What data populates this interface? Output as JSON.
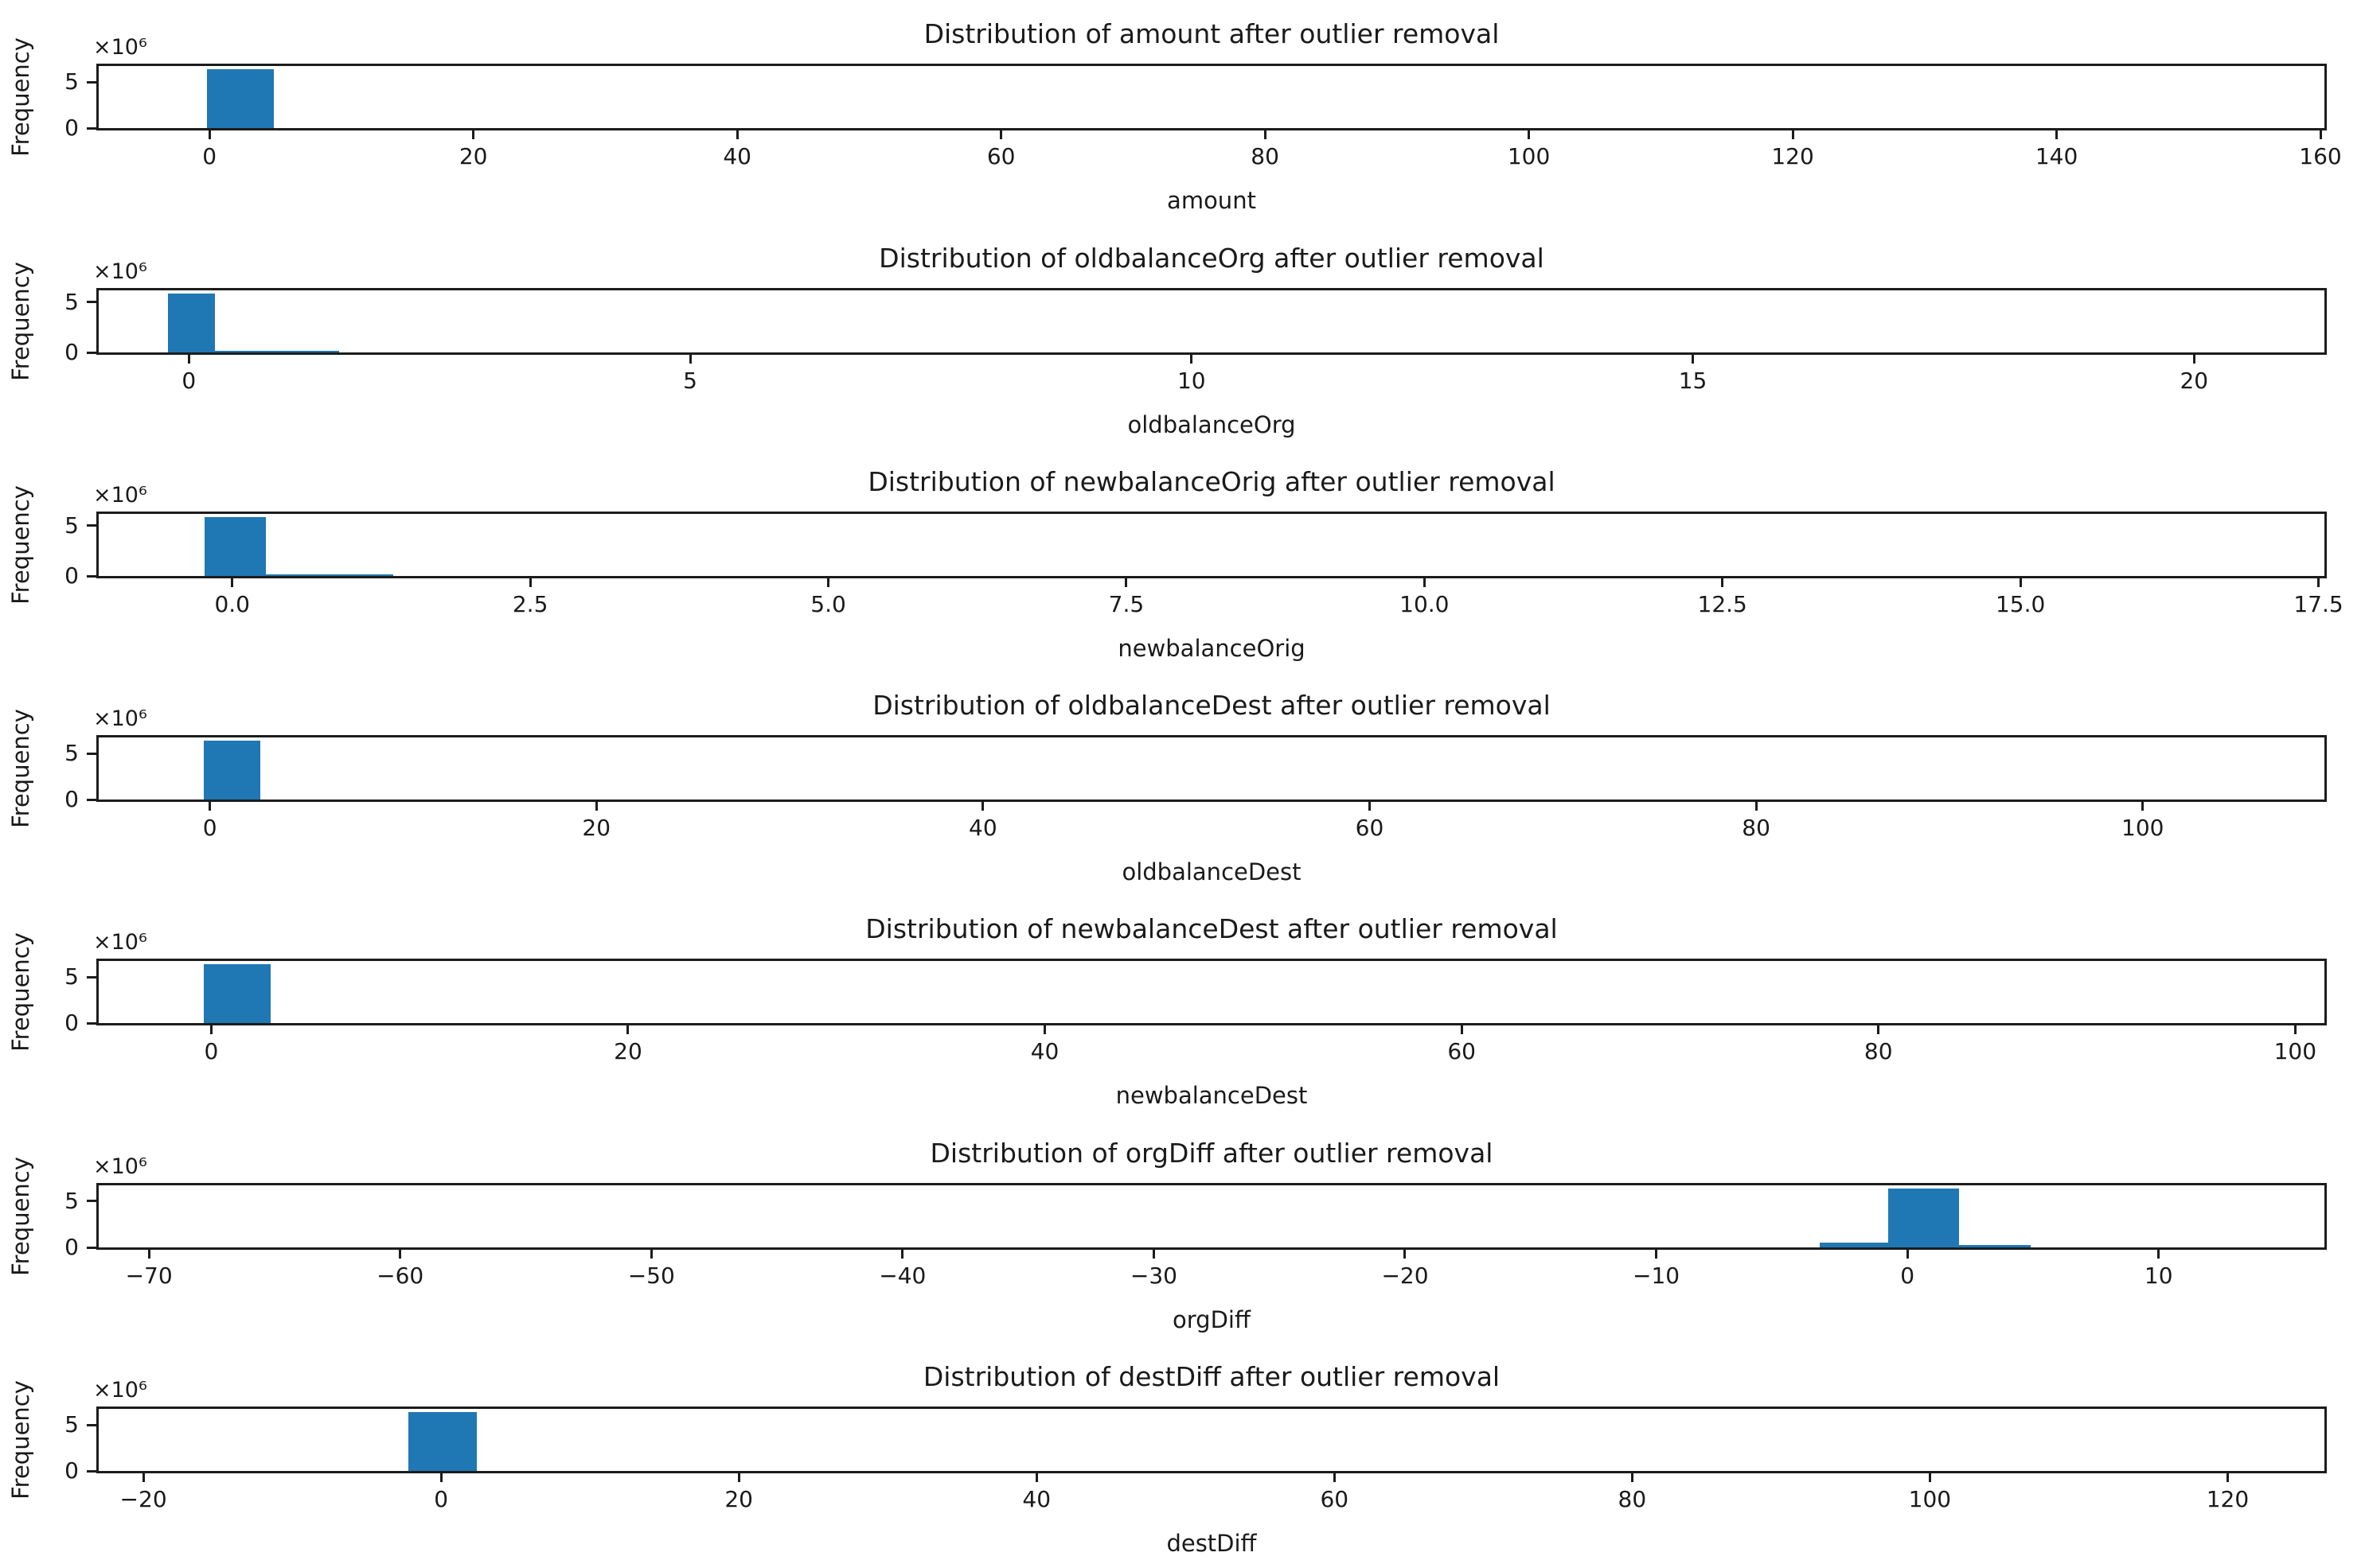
{
  "figure": {
    "background_color": "#ffffff",
    "bar_color": "#1f77b4",
    "axis_color": "#1c1c1c",
    "text_color": "#1a1a1a",
    "ylabel": "Frequency",
    "y_offset_label": "×10⁶",
    "note": "7 vertically stacked histograms, frequencies in millions"
  },
  "chart_data": [
    {
      "type": "histogram",
      "title": "Distribution of amount after outlier removal",
      "xlabel": "amount",
      "ylabel": "Frequency",
      "y_offset_label": "×10⁶",
      "xlim": [
        -8.4,
        160.3
      ],
      "ylim_millions": [
        0,
        6.75
      ],
      "grid": false,
      "y_ticks": [
        {
          "value": 0,
          "label": "0"
        },
        {
          "value": 5,
          "label": "5"
        }
      ],
      "x_ticks": [
        {
          "value": 0,
          "label": "0"
        },
        {
          "value": 20,
          "label": "20"
        },
        {
          "value": 40,
          "label": "40"
        },
        {
          "value": 60,
          "label": "60"
        },
        {
          "value": 80,
          "label": "80"
        },
        {
          "value": 100,
          "label": "100"
        },
        {
          "value": 120,
          "label": "120"
        },
        {
          "value": 140,
          "label": "140"
        },
        {
          "value": 160,
          "label": "160"
        }
      ],
      "bars_millions": [
        {
          "from": -0.2,
          "to": 4.9,
          "height": 6.43
        }
      ]
    },
    {
      "type": "histogram",
      "title": "Distribution of oldbalanceOrg after outlier removal",
      "xlabel": "oldbalanceOrg",
      "ylabel": "Frequency",
      "y_offset_label": "×10⁶",
      "xlim": [
        -0.9,
        21.3
      ],
      "ylim_millions": [
        0,
        6.16
      ],
      "grid": false,
      "y_ticks": [
        {
          "value": 0,
          "label": "0"
        },
        {
          "value": 5,
          "label": "5"
        }
      ],
      "x_ticks": [
        {
          "value": 0,
          "label": "0"
        },
        {
          "value": 5,
          "label": "5"
        },
        {
          "value": 10,
          "label": "10"
        },
        {
          "value": 15,
          "label": "15"
        },
        {
          "value": 20,
          "label": "20"
        }
      ],
      "bars_millions": [
        {
          "from": -0.21,
          "to": 0.26,
          "height": 5.87
        },
        {
          "from": 0.26,
          "to": 1.5,
          "height": 0.15
        }
      ]
    },
    {
      "type": "histogram",
      "title": "Distribution of newbalanceOrig after outlier removal",
      "xlabel": "newbalanceOrig",
      "ylabel": "Frequency",
      "y_offset_label": "×10⁶",
      "xlim": [
        -1.12,
        17.55
      ],
      "ylim_millions": [
        0,
        6.16
      ],
      "grid": false,
      "y_ticks": [
        {
          "value": 0,
          "label": "0"
        },
        {
          "value": 5,
          "label": "5"
        }
      ],
      "x_ticks": [
        {
          "value": 0,
          "label": "0.0"
        },
        {
          "value": 2.5,
          "label": "2.5"
        },
        {
          "value": 5,
          "label": "5.0"
        },
        {
          "value": 7.5,
          "label": "7.5"
        },
        {
          "value": 10,
          "label": "10.0"
        },
        {
          "value": 12.5,
          "label": "12.5"
        },
        {
          "value": 15,
          "label": "15.0"
        },
        {
          "value": 17.5,
          "label": "17.5"
        }
      ],
      "bars_millions": [
        {
          "from": -0.23,
          "to": 0.28,
          "height": 5.87
        },
        {
          "from": 0.28,
          "to": 1.35,
          "height": 0.12
        }
      ]
    },
    {
      "type": "histogram",
      "title": "Distribution of oldbalanceDest after outlier removal",
      "xlabel": "oldbalanceDest",
      "ylabel": "Frequency",
      "y_offset_label": "×10⁶",
      "xlim": [
        -5.75,
        109.4
      ],
      "ylim_millions": [
        0,
        6.75
      ],
      "grid": false,
      "y_ticks": [
        {
          "value": 0,
          "label": "0"
        },
        {
          "value": 5,
          "label": "5"
        }
      ],
      "x_ticks": [
        {
          "value": 0,
          "label": "0"
        },
        {
          "value": 20,
          "label": "20"
        },
        {
          "value": 40,
          "label": "40"
        },
        {
          "value": 60,
          "label": "60"
        },
        {
          "value": 80,
          "label": "80"
        },
        {
          "value": 100,
          "label": "100"
        }
      ],
      "bars_millions": [
        {
          "from": -0.3,
          "to": 2.6,
          "height": 6.43
        }
      ]
    },
    {
      "type": "histogram",
      "title": "Distribution of newbalanceDest after outlier removal",
      "xlabel": "newbalanceDest",
      "ylabel": "Frequency",
      "y_offset_label": "×10⁶",
      "xlim": [
        -5.4,
        101.4
      ],
      "ylim_millions": [
        0,
        6.75
      ],
      "grid": false,
      "y_ticks": [
        {
          "value": 0,
          "label": "0"
        },
        {
          "value": 5,
          "label": "5"
        }
      ],
      "x_ticks": [
        {
          "value": 0,
          "label": "0"
        },
        {
          "value": 20,
          "label": "20"
        },
        {
          "value": 40,
          "label": "40"
        },
        {
          "value": 60,
          "label": "60"
        },
        {
          "value": 80,
          "label": "80"
        },
        {
          "value": 100,
          "label": "100"
        }
      ],
      "bars_millions": [
        {
          "from": -0.34,
          "to": 2.85,
          "height": 6.43
        }
      ]
    },
    {
      "type": "histogram",
      "title": "Distribution of orgDiff after outlier removal",
      "xlabel": "orgDiff",
      "ylabel": "Frequency",
      "y_offset_label": "×10⁶",
      "xlim": [
        -72,
        16.6
      ],
      "ylim_millions": [
        0,
        6.7
      ],
      "grid": false,
      "y_ticks": [
        {
          "value": 0,
          "label": "0"
        },
        {
          "value": 5,
          "label": "5"
        }
      ],
      "x_ticks": [
        {
          "value": -70,
          "label": "−70"
        },
        {
          "value": -60,
          "label": "−60"
        },
        {
          "value": -50,
          "label": "−50"
        },
        {
          "value": -40,
          "label": "−40"
        },
        {
          "value": -30,
          "label": "−30"
        },
        {
          "value": -20,
          "label": "−20"
        },
        {
          "value": -10,
          "label": "−10"
        },
        {
          "value": 0,
          "label": "0"
        },
        {
          "value": 10,
          "label": "10"
        }
      ],
      "bars_millions": [
        {
          "from": -3.5,
          "to": -0.76,
          "height": 0.55
        },
        {
          "from": -0.76,
          "to": 2.06,
          "height": 6.35
        },
        {
          "from": 2.06,
          "to": 4.9,
          "height": 0.28
        }
      ]
    },
    {
      "type": "histogram",
      "title": "Distribution of destDiff after outlier removal",
      "xlabel": "destDiff",
      "ylabel": "Frequency",
      "y_offset_label": "×10⁶",
      "xlim": [
        -23,
        126.5
      ],
      "ylim_millions": [
        0,
        6.75
      ],
      "grid": false,
      "y_ticks": [
        {
          "value": 0,
          "label": "0"
        },
        {
          "value": 5,
          "label": "5"
        }
      ],
      "x_ticks": [
        {
          "value": -20,
          "label": "−20"
        },
        {
          "value": 0,
          "label": "0"
        },
        {
          "value": 20,
          "label": "20"
        },
        {
          "value": 40,
          "label": "40"
        },
        {
          "value": 60,
          "label": "60"
        },
        {
          "value": 80,
          "label": "80"
        },
        {
          "value": 100,
          "label": "100"
        },
        {
          "value": 120,
          "label": "120"
        }
      ],
      "bars_millions": [
        {
          "from": -2.2,
          "to": 2.4,
          "height": 6.4
        }
      ]
    }
  ]
}
